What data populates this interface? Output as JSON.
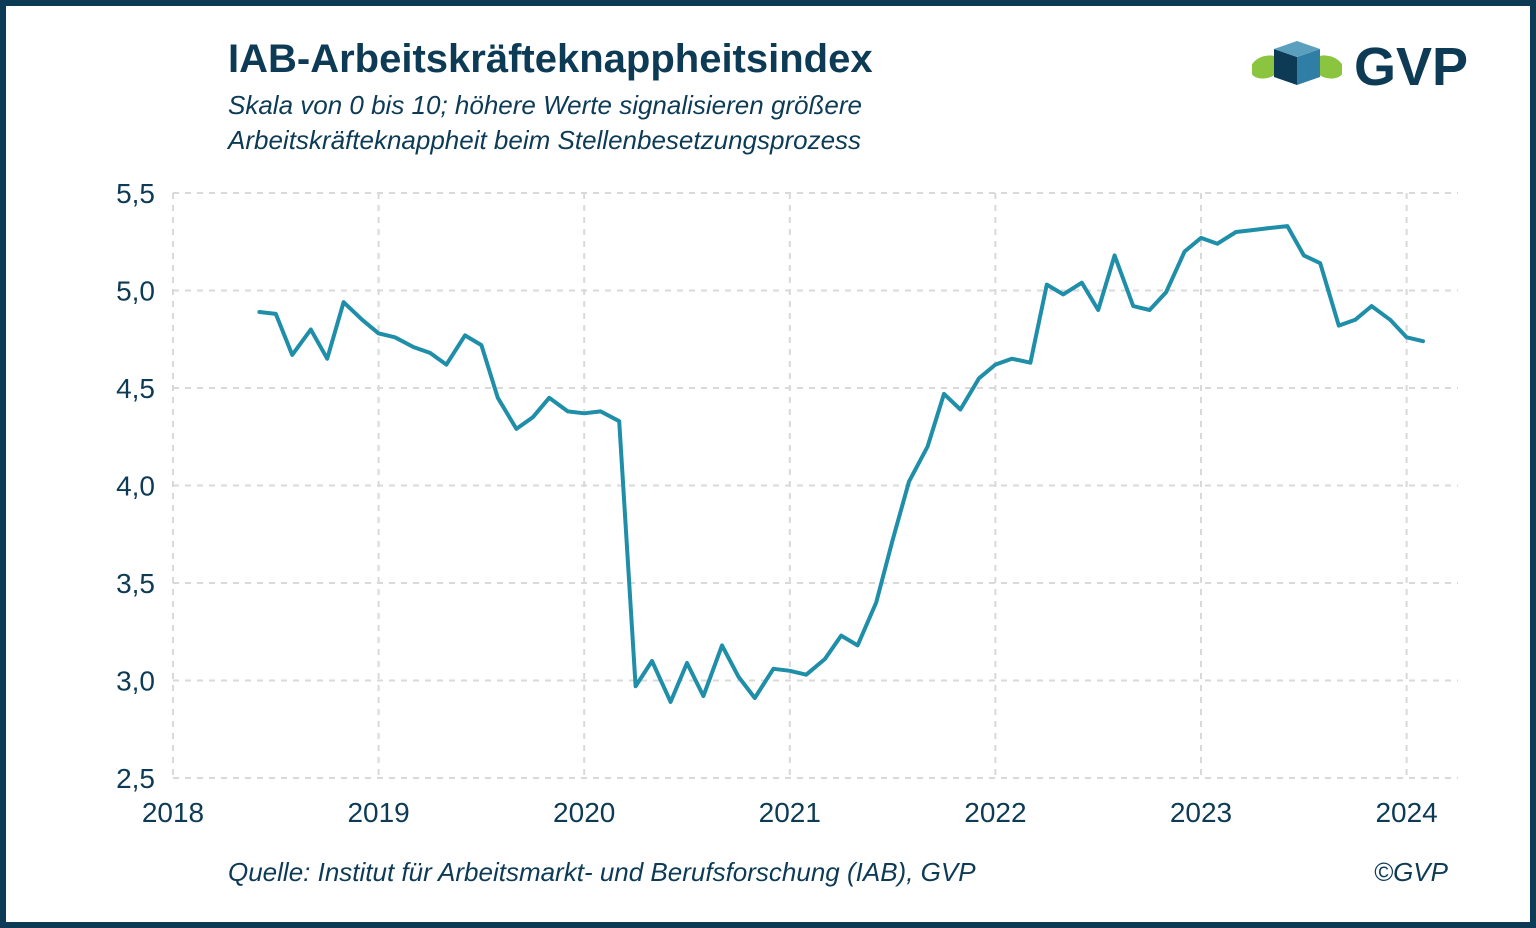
{
  "frame": {
    "border_color": "#0d3b56",
    "background_color": "#ffffff"
  },
  "header": {
    "title": "IAB-Arbeitskräfteknappheitsindex",
    "subtitle": "Skala von 0 bis 10; höhere Werte signalisieren größere Arbeitskräfteknappheit beim Stellenbesetzungsprozess",
    "title_fontsize": 40,
    "subtitle_fontsize": 26,
    "text_color": "#0d3b56"
  },
  "logo": {
    "text": "GVP",
    "text_color": "#0d3b56",
    "shape_blue": "#2f7ea6",
    "shape_navy": "#0d3b56",
    "shape_green": "#8bc53f"
  },
  "chart": {
    "type": "line",
    "line_color": "#1f8ea8",
    "line_width": 4,
    "grid_color": "#d9d9d9",
    "grid_dash": "6,6",
    "axis_color": "#0d3b56",
    "axis_fontsize": 28,
    "x": {
      "min": 2018.0,
      "max": 2024.25,
      "ticks": [
        2018,
        2019,
        2020,
        2021,
        2022,
        2023,
        2024
      ],
      "tick_labels": [
        "2018",
        "2019",
        "2020",
        "2021",
        "2022",
        "2023",
        "2024"
      ]
    },
    "y": {
      "min": 2.5,
      "max": 5.5,
      "ticks": [
        2.5,
        3.0,
        3.5,
        4.0,
        4.5,
        5.0,
        5.5
      ],
      "tick_labels": [
        "2,5",
        "3,0",
        "3,5",
        "4,0",
        "4,5",
        "5,0",
        "5,5"
      ]
    },
    "series": {
      "x": [
        2018.42,
        2018.5,
        2018.58,
        2018.67,
        2018.75,
        2018.83,
        2018.92,
        2019.0,
        2019.08,
        2019.17,
        2019.25,
        2019.33,
        2019.42,
        2019.5,
        2019.58,
        2019.67,
        2019.75,
        2019.83,
        2019.92,
        2020.0,
        2020.08,
        2020.17,
        2020.25,
        2020.33,
        2020.42,
        2020.5,
        2020.58,
        2020.67,
        2020.75,
        2020.83,
        2020.92,
        2021.0,
        2021.08,
        2021.17,
        2021.25,
        2021.33,
        2021.42,
        2021.5,
        2021.58,
        2021.67,
        2021.75,
        2021.83,
        2021.92,
        2022.0,
        2022.08,
        2022.17,
        2022.25,
        2022.33,
        2022.42,
        2022.5,
        2022.58,
        2022.67,
        2022.75,
        2022.83,
        2022.92,
        2023.0,
        2023.08,
        2023.17,
        2023.25,
        2023.33,
        2023.42,
        2023.5,
        2023.58,
        2023.67,
        2023.75,
        2023.83,
        2023.92,
        2024.0,
        2024.08
      ],
      "y": [
        4.89,
        4.88,
        4.67,
        4.8,
        4.65,
        4.94,
        4.85,
        4.78,
        4.76,
        4.71,
        4.68,
        4.62,
        4.77,
        4.72,
        4.45,
        4.29,
        4.35,
        4.45,
        4.38,
        4.37,
        4.38,
        4.33,
        2.97,
        3.1,
        2.89,
        3.09,
        2.92,
        3.18,
        3.02,
        2.91,
        3.06,
        3.05,
        3.03,
        3.11,
        3.23,
        3.18,
        3.4,
        3.72,
        4.02,
        4.2,
        4.47,
        4.39,
        4.55,
        4.62,
        4.65,
        4.63,
        5.03,
        4.98,
        5.04,
        4.9,
        5.18,
        4.92,
        4.9,
        4.99,
        5.2,
        5.27,
        5.24,
        5.3,
        5.31,
        5.32,
        5.33,
        5.18,
        5.14,
        4.82,
        4.85,
        4.92,
        4.85,
        4.76,
        4.74
      ]
    }
  },
  "footer": {
    "source": "Quelle: Institut für Arbeitsmarkt- und Berufsforschung (IAB), GVP",
    "copyright": "©GVP",
    "fontsize": 26,
    "color": "#0d3b56"
  }
}
